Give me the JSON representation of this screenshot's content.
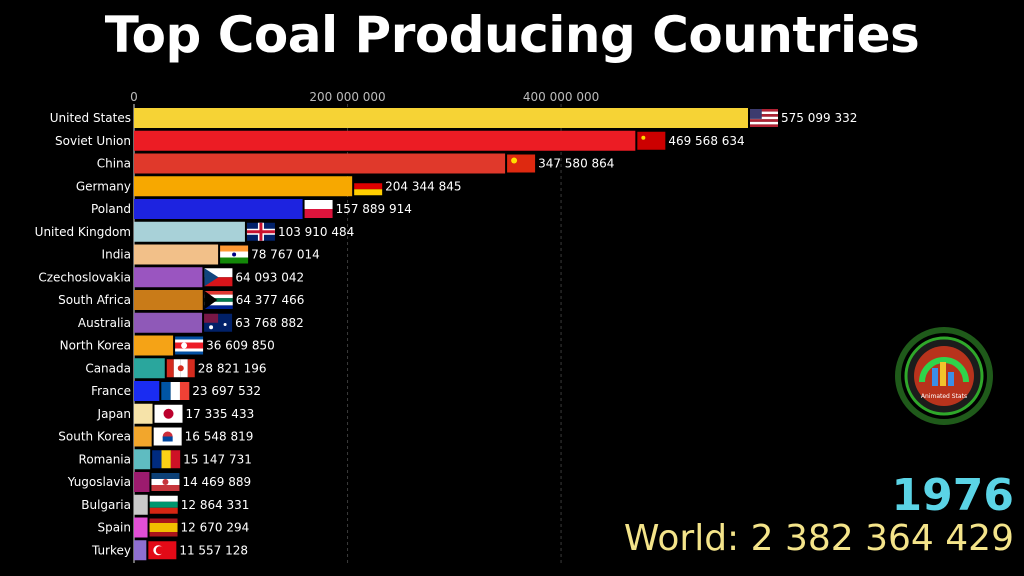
{
  "title": "Top Coal Producing Countries",
  "year": "1976",
  "world_label": "World: 2 382 364 429",
  "logo_text": "Animated Stats",
  "chart_data": {
    "type": "bar",
    "orientation": "horizontal",
    "xlim": [
      0,
      700000000
    ],
    "ticks": [
      0,
      200000000,
      400000000
    ],
    "tick_labels": [
      "0",
      "200 000 000",
      "400 000 000"
    ],
    "grid": true,
    "bars": [
      {
        "country": "United States",
        "value": 575099332,
        "label": "575 099 332",
        "color": "#f6d335",
        "flag": "us"
      },
      {
        "country": "Soviet Union",
        "value": 469568634,
        "label": "469 568 634",
        "color": "#ec1c24",
        "flag": "su"
      },
      {
        "country": "China",
        "value": 347580864,
        "label": "347 580 864",
        "color": "#e0392b",
        "flag": "cn"
      },
      {
        "country": "Germany",
        "value": 204344845,
        "label": "204 344 845",
        "color": "#f7a800",
        "flag": "de"
      },
      {
        "country": "Poland",
        "value": 157889914,
        "label": "157 889 914",
        "color": "#1d23e0",
        "flag": "pl"
      },
      {
        "country": "United Kingdom",
        "value": 103910484,
        "label": "103 910 484",
        "color": "#a8d1d8",
        "flag": "gb"
      },
      {
        "country": "India",
        "value": 78767014,
        "label": "78 767 014",
        "color": "#f2c089",
        "flag": "in"
      },
      {
        "country": "Czechoslovakia",
        "value": 64093042,
        "label": "64 093 042",
        "color": "#9a55c0",
        "flag": "cz"
      },
      {
        "country": "South Africa",
        "value": 64377466,
        "label": "64 377 466",
        "color": "#c97b18",
        "flag": "za"
      },
      {
        "country": "Australia",
        "value": 63768882,
        "label": "63 768 882",
        "color": "#8f59b8",
        "flag": "au"
      },
      {
        "country": "North Korea",
        "value": 36609850,
        "label": "36 609 850",
        "color": "#f5a316",
        "flag": "kp"
      },
      {
        "country": "Canada",
        "value": 28821196,
        "label": "28 821 196",
        "color": "#2aa69d",
        "flag": "ca"
      },
      {
        "country": "France",
        "value": 23697532,
        "label": "23 697 532",
        "color": "#1a2cf2",
        "flag": "fr"
      },
      {
        "country": "Japan",
        "value": 17335433,
        "label": "17 335 433",
        "color": "#f6e3a9",
        "flag": "jp"
      },
      {
        "country": "South Korea",
        "value": 16548819,
        "label": "16 548 819",
        "color": "#f2a62c",
        "flag": "kr"
      },
      {
        "country": "Romania",
        "value": 15147731,
        "label": "15 147 731",
        "color": "#5fbcc1",
        "flag": "ro"
      },
      {
        "country": "Yugoslavia",
        "value": 14469889,
        "label": "14 469 889",
        "color": "#9c1b6e",
        "flag": "yu"
      },
      {
        "country": "Bulgaria",
        "value": 12864331,
        "label": "12 864 331",
        "color": "#c9c9c9",
        "flag": "bg"
      },
      {
        "country": "Spain",
        "value": 12670294,
        "label": "12 670 294",
        "color": "#e24fd6",
        "flag": "es"
      },
      {
        "country": "Turkey",
        "value": 11557128,
        "label": "11 557 128",
        "color": "#8e6fd0",
        "flag": "tr"
      }
    ]
  }
}
